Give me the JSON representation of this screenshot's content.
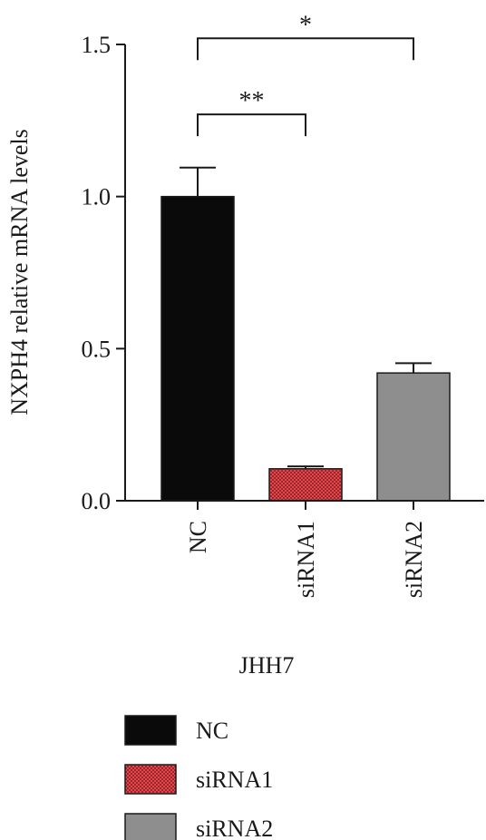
{
  "chart_data": {
    "type": "bar",
    "ylabel": "NXPH4 relative mRNA levels",
    "xlabel": "JHH7",
    "ylim": [
      0,
      1.5
    ],
    "yticks": [
      "0.0",
      "0.5",
      "1.0",
      "1.5"
    ],
    "ytick_values": [
      0,
      0.5,
      1.0,
      1.5
    ],
    "categories": [
      "NC",
      "siRNA1",
      "siRNA2"
    ],
    "values": [
      1.0,
      0.105,
      0.42
    ],
    "errors": [
      0.095,
      0.008,
      0.032
    ],
    "colors": [
      "#0a0a0a",
      "#e8454a",
      "#8e8e8e"
    ],
    "patterns": [
      "solid",
      "dotted",
      "solid"
    ],
    "significance": [
      {
        "from": 0,
        "to": 1,
        "label": "**",
        "y": 1.27
      },
      {
        "from": 0,
        "to": 2,
        "label": "*",
        "y": 1.52
      }
    ],
    "legend": {
      "placement": "bottom",
      "entries": [
        "NC",
        "siRNA1",
        "siRNA2"
      ]
    }
  }
}
